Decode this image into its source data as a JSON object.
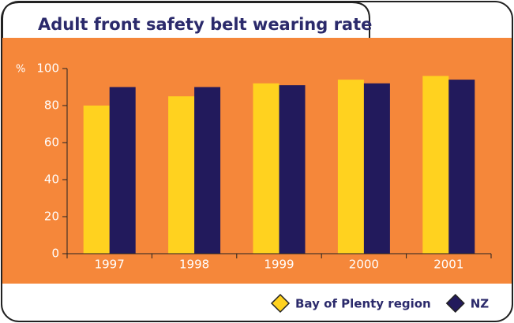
{
  "chart_data": {
    "type": "bar",
    "title": "Adult front safety belt wearing rate",
    "y_label": "%",
    "categories": [
      "1997",
      "1998",
      "1999",
      "2000",
      "2001"
    ],
    "series": [
      {
        "name": "Bay of Plenty region",
        "color": "#ffd21f",
        "values": [
          80,
          85,
          92,
          94,
          96
        ]
      },
      {
        "name": "NZ",
        "color": "#221a5c",
        "values": [
          90,
          90,
          91,
          92,
          94
        ]
      }
    ],
    "ylim": [
      0,
      100
    ],
    "yticks": [
      0,
      20,
      40,
      60,
      80,
      100
    ],
    "background": "#f5873a"
  }
}
